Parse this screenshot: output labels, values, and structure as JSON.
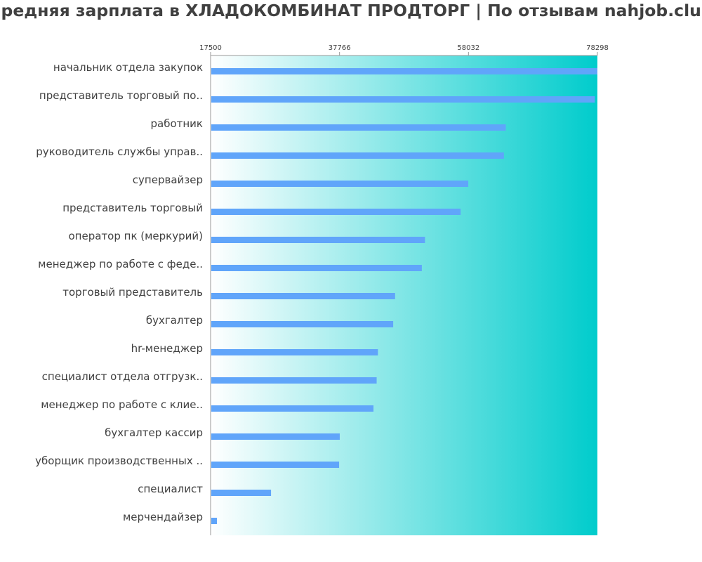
{
  "chart_data": {
    "type": "bar",
    "orientation": "horizontal",
    "title": "Средняя зарплата в ХЛАДОКОМБИНАТ ПРОДТОРГ | По отзывам nahjob.club",
    "xlabel": "",
    "ylabel": "",
    "xlim": [
      17500,
      78298
    ],
    "x_ticks": [
      "17500",
      "37766",
      "58032",
      "78298"
    ],
    "grid": false,
    "legend": "none",
    "colors": {
      "bar": "#60a5fa",
      "gradient_start": "#ffffff",
      "gradient_end": "#00cccc",
      "text": "#404040",
      "axis": "#999999"
    },
    "categories": [
      "начальник отдела закупок",
      "представитель торговый по..",
      "работник",
      "руководитель службы управ..",
      "супервайзер",
      "представитель торговый",
      "оператор пк (меркурий)",
      "менеджер по работе с феде..",
      "торговый представитель",
      "бухгалтер",
      "hr-менеджер",
      "специалист отдела отгрузк..",
      "менеджер по работе с клие..",
      "бухгалтер кассир",
      "уборщик производственных ..",
      "специалист",
      "мерчендайзер"
    ],
    "values": [
      78298,
      77900,
      63900,
      63600,
      58000,
      56800,
      51200,
      50700,
      46500,
      46200,
      43800,
      43600,
      43100,
      37800,
      37700,
      27000,
      18500
    ]
  }
}
